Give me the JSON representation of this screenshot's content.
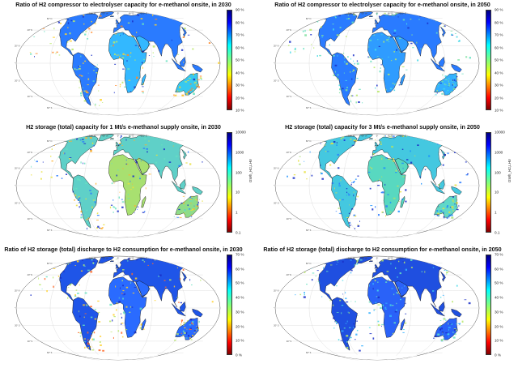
{
  "panels": [
    {
      "title": "Ratio of H2 compressor to electrolyser capacity for e-methanol onsite, in 2030",
      "colormap": "jet",
      "ticks": [
        "90 %",
        "80 %",
        "70 %",
        "60 %",
        "50 %",
        "40 %",
        "30 %",
        "20 %",
        "10 %"
      ],
      "unit": "",
      "land_color": "#2a7bff",
      "africa_color": "#33b8ff",
      "australia_color": "#36c8f0",
      "patch_colors": [
        "#ffd02a",
        "#b8e86a",
        "#66e0c0",
        "#1a2fc8",
        "#ff8a2a"
      ]
    },
    {
      "title": "Ratio of H2 compressor to electrolyser capacity for e-methanol onsite, in 2050",
      "colormap": "jet",
      "ticks": [
        "90 %",
        "80 %",
        "70 %",
        "60 %",
        "50 %",
        "40 %",
        "30 %",
        "20 %",
        "10 %"
      ],
      "unit": "",
      "land_color": "#2a7bff",
      "africa_color": "#2f9cff",
      "australia_color": "#33b0ff",
      "patch_colors": [
        "#7fe0a0",
        "#66e0c0",
        "#1a2fc8",
        "#b8e86a",
        "#44d8e8"
      ]
    },
    {
      "title": "H2 storage (total) capacity for 1 Mt/s e-methanol supply onsite, in 2030",
      "colormap": "jet",
      "ticks": [
        "10000",
        "1000",
        "100",
        "10",
        "1",
        "0.1"
      ],
      "unit": "GWh_H2,LHV",
      "land_color": "#5fd0c8",
      "africa_color": "#a8e070",
      "australia_color": "#8fdc88",
      "patch_colors": [
        "#e8e040",
        "#2a7bff",
        "#1a2fc8",
        "#ffb02a",
        "#66e0c0"
      ]
    },
    {
      "title": "H2 storage (total) capacity for 3 Mt/s e-methanol supply onsite, in 2050",
      "colormap": "jet",
      "ticks": [
        "10000",
        "1000",
        "100",
        "10",
        "1",
        "0.1"
      ],
      "unit": "GWh_H2,LHV",
      "land_color": "#44c8e0",
      "africa_color": "#58d8c0",
      "australia_color": "#60d8c8",
      "patch_colors": [
        "#2a7bff",
        "#1a2fc8",
        "#a8e070",
        "#e8e040",
        "#1a8fff"
      ]
    },
    {
      "title": "Ratio of H2 storage (total) discharge to H2 consumption for e-methanol onsite, in 2030",
      "colormap": "jet",
      "ticks": [
        "70 %",
        "60 %",
        "50 %",
        "40 %",
        "30 %",
        "20 %",
        "10 %",
        "0 %"
      ],
      "unit": "",
      "land_color": "#1f55e8",
      "africa_color": "#2a6bff",
      "australia_color": "#2a6bff",
      "patch_colors": [
        "#ffd02a",
        "#ff6a2a",
        "#66e0c0",
        "#b8e86a",
        "#1a2fc8"
      ]
    },
    {
      "title": "Ratio of H2 storage (total) discharge to H2 consumption for e-methanol onsite, in 2050",
      "colormap": "jet",
      "ticks": [
        "70 %",
        "60 %",
        "50 %",
        "40 %",
        "30 %",
        "20 %",
        "10 %",
        "0 %"
      ],
      "unit": "",
      "land_color": "#1f4fe0",
      "africa_color": "#2a62f8",
      "australia_color": "#2a62f8",
      "patch_colors": [
        "#33b0ff",
        "#66e0c0",
        "#1a2fc8",
        "#44d8e8",
        "#b8e86a"
      ]
    }
  ],
  "lat_labels": [
    "60° N",
    "40° N",
    "20° N",
    "0°",
    "20° S",
    "40° S",
    "60° S"
  ],
  "lon_labels": [
    "120° W",
    "60° W",
    "0°",
    "60° E",
    "120° E"
  ]
}
